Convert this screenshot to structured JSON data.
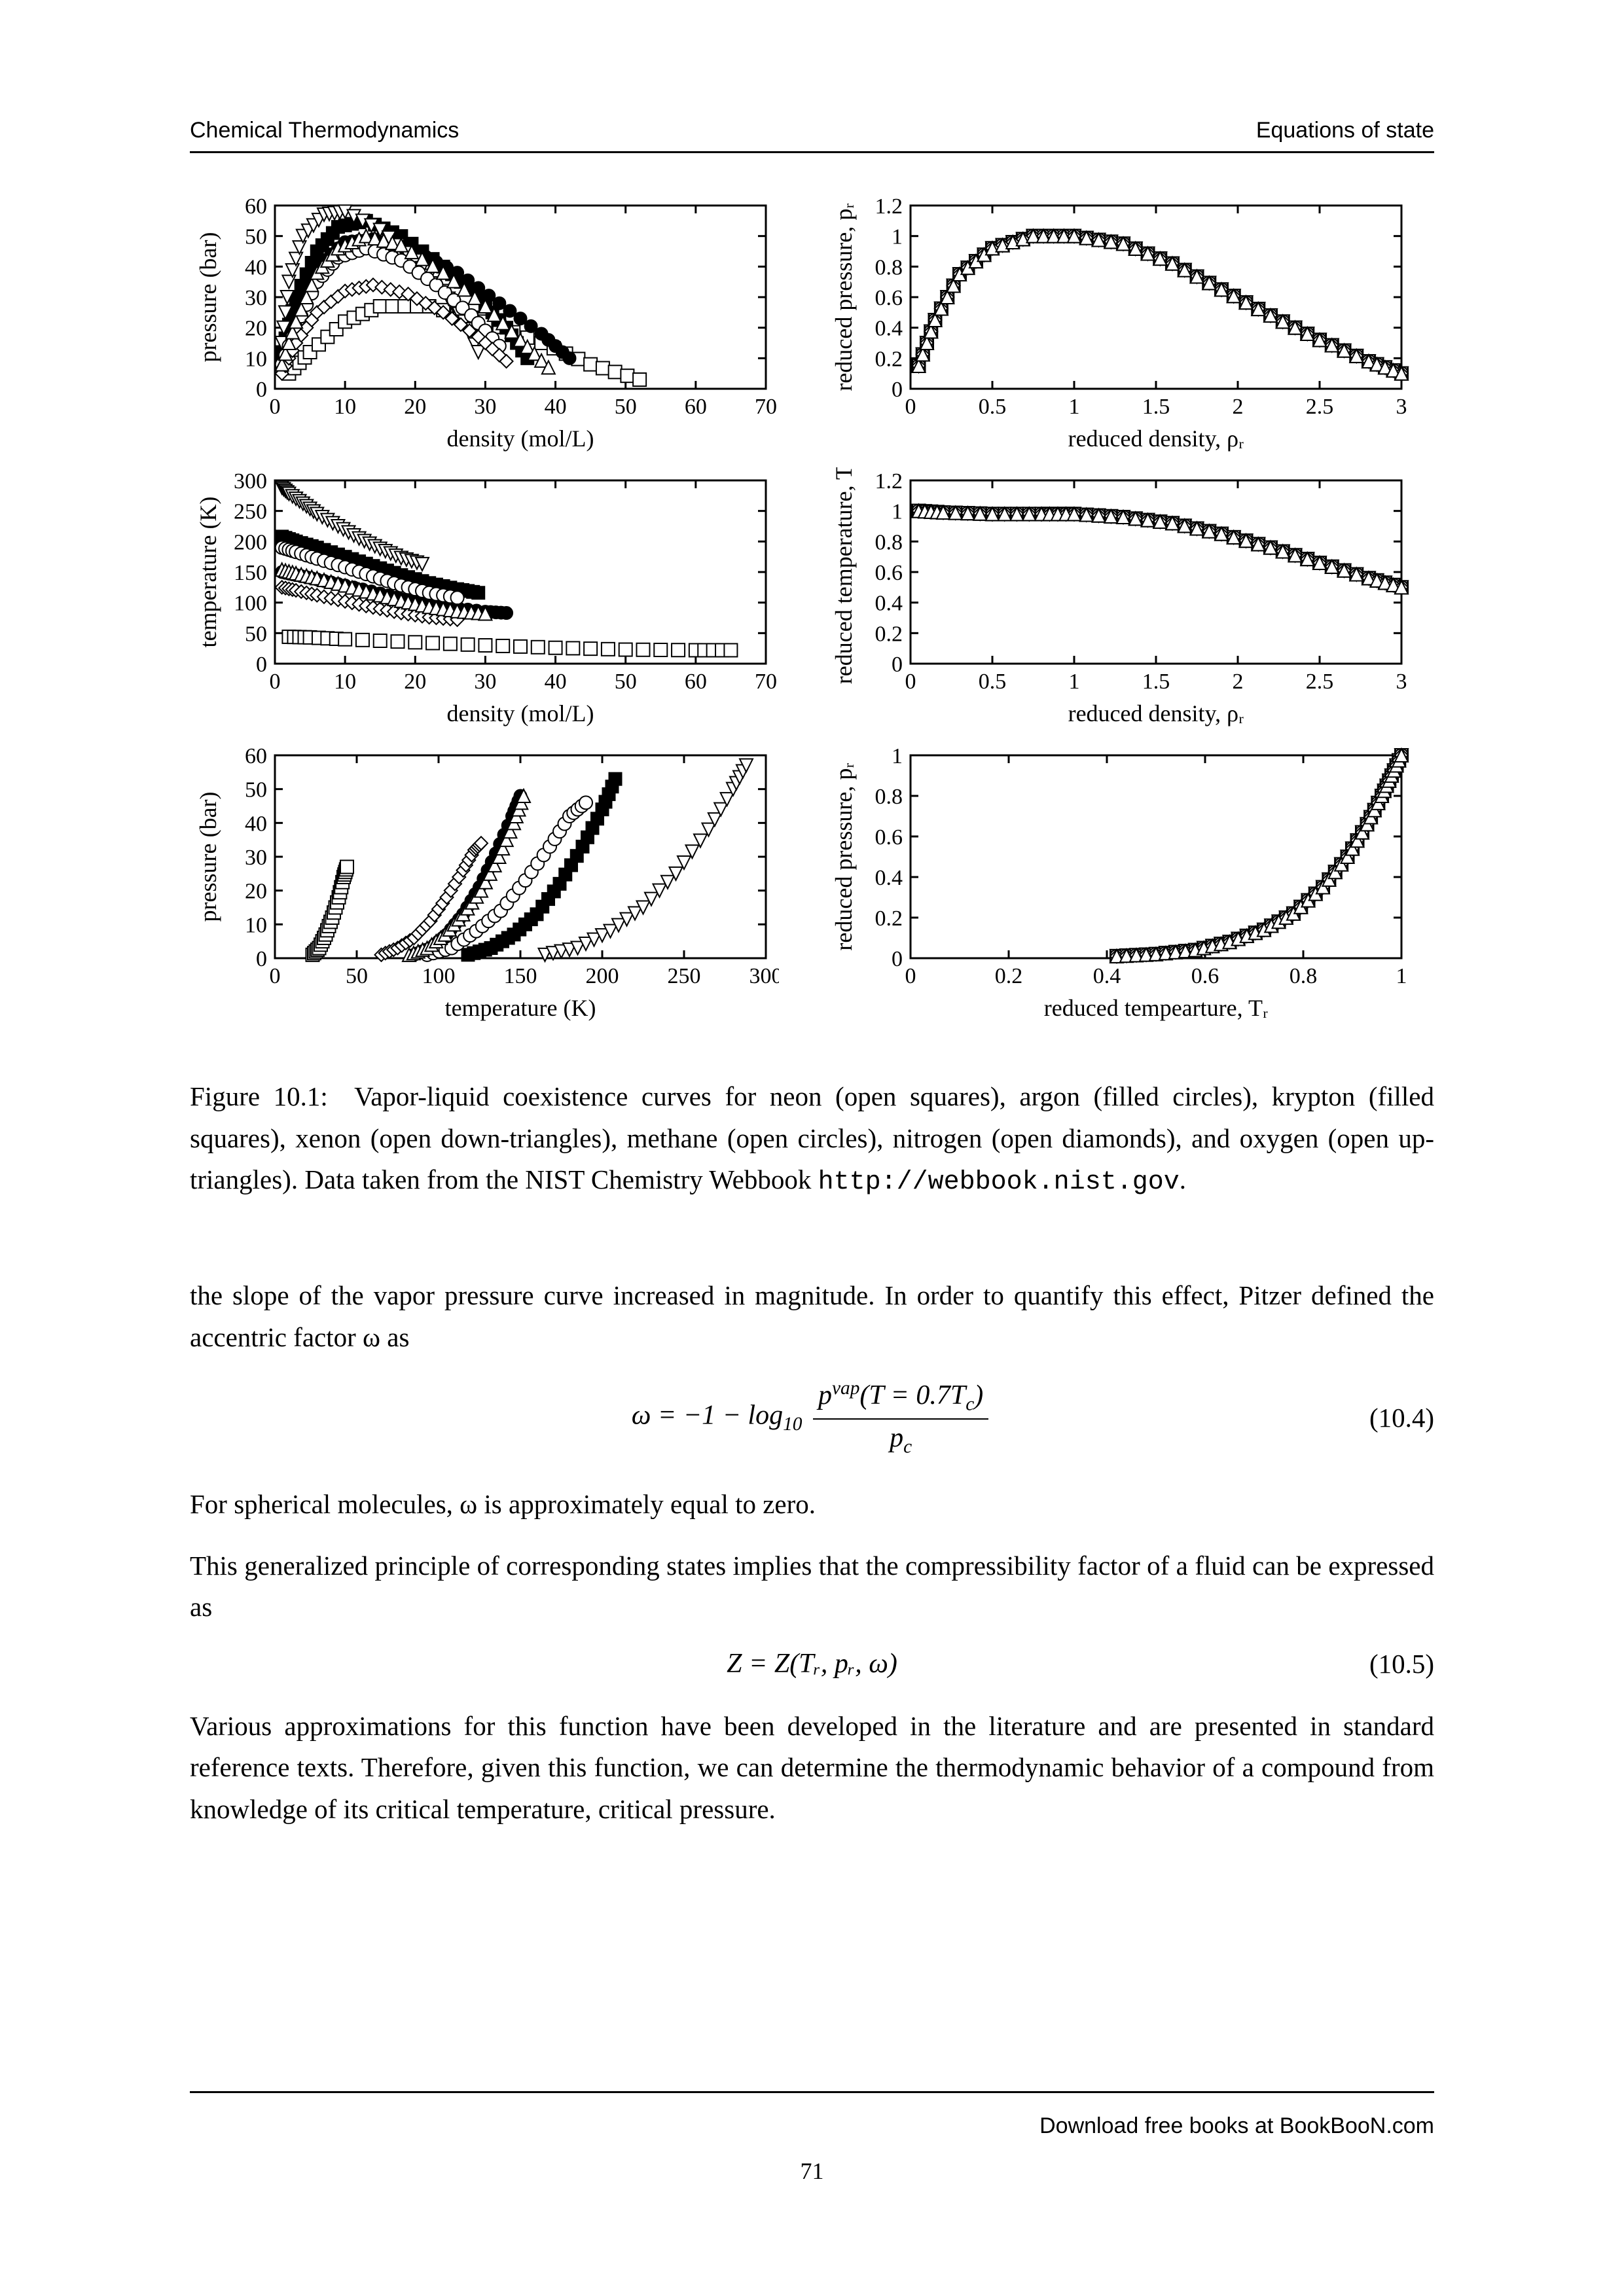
{
  "header": {
    "left": "Chemical Thermodynamics",
    "right": "Equations of state"
  },
  "charts": {
    "panel_bg": "#ffffff",
    "axis_color": "#000000",
    "tick_fontsize": 34,
    "label_fontsize": 36,
    "a": {
      "xlabel": "density (mol/L)",
      "ylabel": "pressure (bar)",
      "xlim": [
        0,
        70
      ],
      "ylim": [
        0,
        60
      ],
      "xticks": [
        0,
        10,
        20,
        30,
        40,
        50,
        60,
        70
      ],
      "yticks": [
        0,
        10,
        20,
        30,
        40,
        50,
        60
      ]
    },
    "b": {
      "xlabel": "reduced density, ρᵣ",
      "ylabel": "reduced pressure, pᵣ",
      "xlim": [
        0.0,
        3.0
      ],
      "ylim": [
        0.0,
        1.2
      ],
      "xticks": [
        0.0,
        0.5,
        1.0,
        1.5,
        2.0,
        2.5,
        3.0
      ],
      "yticks": [
        0.0,
        0.2,
        0.4,
        0.6,
        0.8,
        1.0,
        1.2
      ]
    },
    "c": {
      "xlabel": "density (mol/L)",
      "ylabel": "temperature (K)",
      "xlim": [
        0,
        70
      ],
      "ylim": [
        0,
        300
      ],
      "xticks": [
        0,
        10,
        20,
        30,
        40,
        50,
        60,
        70
      ],
      "yticks": [
        0,
        50,
        100,
        150,
        200,
        250,
        300
      ]
    },
    "d": {
      "xlabel": "reduced density, ρᵣ",
      "ylabel": "reduced temperature, Tᵣ",
      "xlim": [
        0.0,
        3.0
      ],
      "ylim": [
        0.0,
        1.2
      ],
      "xticks": [
        0.0,
        0.5,
        1.0,
        1.5,
        2.0,
        2.5,
        3.0
      ],
      "yticks": [
        0.0,
        0.2,
        0.4,
        0.6,
        0.8,
        1.0,
        1.2
      ]
    },
    "e": {
      "xlabel": "temperature (K)",
      "ylabel": "pressure (bar)",
      "xlim": [
        0,
        300
      ],
      "ylim": [
        0,
        60
      ],
      "xticks": [
        0,
        50,
        100,
        150,
        200,
        250,
        300
      ],
      "yticks": [
        0,
        10,
        20,
        30,
        40,
        50,
        60
      ]
    },
    "f": {
      "xlabel": "reduced tempearture, Tᵣ",
      "ylabel": "reduced pressure, pᵣ",
      "xlim": [
        0.0,
        1.0
      ],
      "ylim": [
        0.0,
        1.0
      ],
      "xticks": [
        0.0,
        0.2,
        0.4,
        0.6,
        0.8,
        1.0
      ],
      "yticks": [
        0.0,
        0.2,
        0.4,
        0.6,
        0.8,
        1.0
      ]
    },
    "series": {
      "neon": {
        "marker": "open-square",
        "label": "neon"
      },
      "argon": {
        "marker": "filled-circle",
        "label": "argon"
      },
      "krypton": {
        "marker": "filled-square",
        "label": "krypton"
      },
      "xenon": {
        "marker": "open-tri-down",
        "label": "xenon"
      },
      "methane": {
        "marker": "open-circle",
        "label": "methane"
      },
      "nitrogen": {
        "marker": "open-diamond",
        "label": "nitrogen"
      },
      "oxygen": {
        "marker": "open-tri-up",
        "label": "oxygen"
      }
    },
    "coexistence_curves": {
      "a": {
        "neon": [
          [
            2,
            5
          ],
          [
            5,
            12
          ],
          [
            10,
            22
          ],
          [
            15,
            27
          ],
          [
            22,
            27
          ],
          [
            30,
            22
          ],
          [
            38,
            15
          ],
          [
            45,
            8
          ],
          [
            52,
            3
          ]
        ],
        "argon": [
          [
            1,
            10
          ],
          [
            3,
            25
          ],
          [
            6,
            40
          ],
          [
            10,
            48
          ],
          [
            14,
            49
          ],
          [
            20,
            45
          ],
          [
            26,
            38
          ],
          [
            32,
            28
          ],
          [
            38,
            18
          ],
          [
            42,
            10
          ]
        ],
        "krypton": [
          [
            1,
            12
          ],
          [
            3,
            30
          ],
          [
            6,
            45
          ],
          [
            9,
            53
          ],
          [
            13,
            55
          ],
          [
            18,
            50
          ],
          [
            24,
            40
          ],
          [
            29,
            30
          ],
          [
            33,
            20
          ],
          [
            36,
            10
          ]
        ],
        "xenon": [
          [
            1,
            15
          ],
          [
            2,
            35
          ],
          [
            4,
            50
          ],
          [
            7,
            57
          ],
          [
            10,
            58
          ],
          [
            15,
            52
          ],
          [
            20,
            42
          ],
          [
            24,
            32
          ],
          [
            27,
            22
          ],
          [
            29,
            12
          ]
        ],
        "methane": [
          [
            1,
            8
          ],
          [
            3,
            20
          ],
          [
            6,
            35
          ],
          [
            9,
            43
          ],
          [
            13,
            46
          ],
          [
            18,
            42
          ],
          [
            23,
            34
          ],
          [
            28,
            24
          ],
          [
            32,
            14
          ]
        ],
        "nitrogen": [
          [
            1,
            5
          ],
          [
            3,
            15
          ],
          [
            6,
            25
          ],
          [
            10,
            32
          ],
          [
            14,
            34
          ],
          [
            19,
            31
          ],
          [
            24,
            25
          ],
          [
            29,
            17
          ],
          [
            33,
            9
          ]
        ],
        "oxygen": [
          [
            1,
            8
          ],
          [
            3,
            22
          ],
          [
            6,
            38
          ],
          [
            9,
            46
          ],
          [
            13,
            50
          ],
          [
            18,
            47
          ],
          [
            24,
            38
          ],
          [
            30,
            27
          ],
          [
            35,
            16
          ],
          [
            39,
            7
          ]
        ]
      },
      "c": {
        "neon": [
          [
            2,
            44
          ],
          [
            5,
            43
          ],
          [
            10,
            40
          ],
          [
            20,
            35
          ],
          [
            30,
            30
          ],
          [
            40,
            26
          ],
          [
            50,
            23
          ],
          [
            60,
            22
          ],
          [
            65,
            22
          ]
        ],
        "argon": [
          [
            1,
            150
          ],
          [
            3,
            145
          ],
          [
            6,
            138
          ],
          [
            10,
            128
          ],
          [
            15,
            115
          ],
          [
            20,
            103
          ],
          [
            25,
            92
          ],
          [
            30,
            85
          ],
          [
            33,
            83
          ]
        ],
        "krypton": [
          [
            1,
            208
          ],
          [
            3,
            200
          ],
          [
            6,
            190
          ],
          [
            10,
            175
          ],
          [
            14,
            160
          ],
          [
            18,
            145
          ],
          [
            22,
            132
          ],
          [
            26,
            122
          ],
          [
            29,
            116
          ]
        ],
        "xenon": [
          [
            1,
            288
          ],
          [
            2,
            278
          ],
          [
            4,
            262
          ],
          [
            6,
            245
          ],
          [
            9,
            225
          ],
          [
            12,
            205
          ],
          [
            15,
            188
          ],
          [
            18,
            173
          ],
          [
            21,
            163
          ]
        ],
        "methane": [
          [
            1,
            190
          ],
          [
            3,
            183
          ],
          [
            6,
            172
          ],
          [
            10,
            158
          ],
          [
            14,
            143
          ],
          [
            18,
            128
          ],
          [
            22,
            116
          ],
          [
            26,
            108
          ]
        ],
        "nitrogen": [
          [
            1,
            125
          ],
          [
            3,
            120
          ],
          [
            6,
            112
          ],
          [
            10,
            102
          ],
          [
            14,
            92
          ],
          [
            18,
            83
          ],
          [
            22,
            76
          ],
          [
            26,
            72
          ]
        ],
        "oxygen": [
          [
            1,
            154
          ],
          [
            3,
            148
          ],
          [
            6,
            140
          ],
          [
            10,
            128
          ],
          [
            14,
            115
          ],
          [
            18,
            103
          ],
          [
            22,
            93
          ],
          [
            26,
            86
          ],
          [
            30,
            82
          ]
        ]
      },
      "e": {
        "neon": [
          [
            23,
            1
          ],
          [
            27,
            3
          ],
          [
            31,
            7
          ],
          [
            35,
            12
          ],
          [
            39,
            18
          ],
          [
            42,
            24
          ],
          [
            44,
            27
          ]
        ],
        "argon": [
          [
            85,
            1
          ],
          [
            95,
            3
          ],
          [
            105,
            7
          ],
          [
            115,
            13
          ],
          [
            125,
            21
          ],
          [
            135,
            31
          ],
          [
            145,
            42
          ],
          [
            150,
            48
          ]
        ],
        "krypton": [
          [
            118,
            1
          ],
          [
            132,
            3
          ],
          [
            146,
            7
          ],
          [
            160,
            13
          ],
          [
            174,
            22
          ],
          [
            188,
            33
          ],
          [
            200,
            44
          ],
          [
            208,
            53
          ]
        ],
        "xenon": [
          [
            165,
            1
          ],
          [
            185,
            3
          ],
          [
            205,
            8
          ],
          [
            225,
            15
          ],
          [
            245,
            25
          ],
          [
            265,
            38
          ],
          [
            280,
            50
          ],
          [
            288,
            57
          ]
        ],
        "methane": [
          [
            93,
            1
          ],
          [
            108,
            3
          ],
          [
            123,
            8
          ],
          [
            138,
            14
          ],
          [
            153,
            23
          ],
          [
            168,
            33
          ],
          [
            180,
            42
          ],
          [
            190,
            46
          ]
        ],
        "nitrogen": [
          [
            65,
            1
          ],
          [
            75,
            3
          ],
          [
            85,
            6
          ],
          [
            95,
            11
          ],
          [
            105,
            18
          ],
          [
            115,
            26
          ],
          [
            122,
            32
          ],
          [
            126,
            34
          ]
        ],
        "oxygen": [
          [
            82,
            1
          ],
          [
            93,
            3
          ],
          [
            104,
            7
          ],
          [
            115,
            13
          ],
          [
            126,
            20
          ],
          [
            137,
            30
          ],
          [
            146,
            40
          ],
          [
            152,
            48
          ]
        ]
      },
      "reduced_pd": [
        [
          0.05,
          0.15
        ],
        [
          0.15,
          0.45
        ],
        [
          0.3,
          0.75
        ],
        [
          0.5,
          0.92
        ],
        [
          0.75,
          1.0
        ],
        [
          1.0,
          1.0
        ],
        [
          1.3,
          0.95
        ],
        [
          1.6,
          0.82
        ],
        [
          1.9,
          0.65
        ],
        [
          2.2,
          0.48
        ],
        [
          2.5,
          0.32
        ],
        [
          2.8,
          0.18
        ],
        [
          3.0,
          0.1
        ]
      ],
      "reduced_td": [
        [
          0.05,
          1.0
        ],
        [
          0.2,
          0.99
        ],
        [
          0.5,
          0.98
        ],
        [
          0.8,
          0.98
        ],
        [
          1.0,
          0.98
        ],
        [
          1.3,
          0.96
        ],
        [
          1.6,
          0.92
        ],
        [
          1.9,
          0.85
        ],
        [
          2.2,
          0.76
        ],
        [
          2.5,
          0.66
        ],
        [
          2.8,
          0.56
        ],
        [
          3.0,
          0.5
        ]
      ],
      "reduced_pt": [
        [
          0.42,
          0.01
        ],
        [
          0.5,
          0.02
        ],
        [
          0.58,
          0.04
        ],
        [
          0.65,
          0.08
        ],
        [
          0.72,
          0.14
        ],
        [
          0.78,
          0.22
        ],
        [
          0.84,
          0.35
        ],
        [
          0.89,
          0.5
        ],
        [
          0.93,
          0.66
        ],
        [
          0.96,
          0.8
        ],
        [
          0.98,
          0.9
        ],
        [
          1.0,
          1.0
        ]
      ]
    },
    "marker_size": 10
  },
  "caption": {
    "fig_label": "Figure 10.1:",
    "text_1": "Vapor-liquid coexistence curves for neon (open squares), argon (filled circles), krypton (filled squares), xenon (open down-triangles), methane (open circles), nitrogen (open diamonds), and oxygen (open up-triangles).  Data taken from the NIST Chemistry Webbook ",
    "url": "http://webbook.nist.gov",
    "text_2": "."
  },
  "para1": "the slope of the vapor pressure curve increased in magnitude. In order to quantify this effect, Pitzer defined the accentric factor ω as",
  "eq1": {
    "lhs": "ω = −1 − log",
    "sub": "10",
    "num": "p",
    "num_sup": "vap",
    "num_arg": "(T = 0.7T",
    "num_arg_sub": "c",
    "num_close": ")",
    "den": "p",
    "den_sub": "c",
    "number": "(10.4)"
  },
  "para2": "For spherical molecules, ω is approximately equal to zero.",
  "para3": "This generalized principle of corresponding states implies that the compressibility factor of a fluid can be expressed as",
  "eq2": {
    "text": "Z = Z(Tᵣ, pᵣ, ω)",
    "number": "(10.5)"
  },
  "para4": "Various approximations for this function have been developed in the literature and are presented in standard reference texts. Therefore, given this function, we can determine the thermodynamic behavior of a compound from knowledge of its critical temperature, critical pressure.",
  "footer": {
    "text": "Download free books at BookBooN.com",
    "page": "71"
  }
}
